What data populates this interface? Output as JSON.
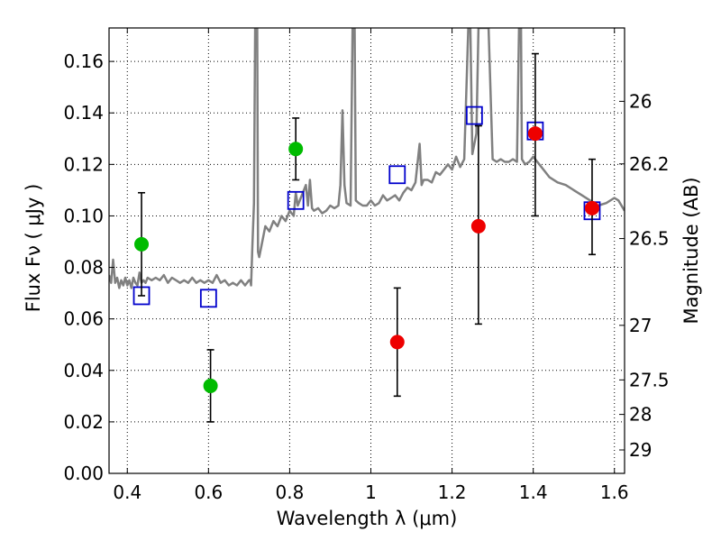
{
  "chart_data": {
    "type": "scatter",
    "xlabel": "Wavelength  λ (μm)",
    "ylabel": "Flux  Fν ( μJy )",
    "ylabel_right": "Magnitude (AB)",
    "xlim": [
      0.355,
      1.625
    ],
    "ylim": [
      0.0,
      0.173
    ],
    "grid": true,
    "x_ticks": [
      0.4,
      0.6,
      0.8,
      1.0,
      1.2,
      1.4,
      1.6
    ],
    "x_tick_labels": [
      "0.4",
      "0.6",
      "0.8",
      "1",
      "1.2",
      "1.4",
      "1.6"
    ],
    "y_ticks": [
      0.0,
      0.02,
      0.04,
      0.06,
      0.08,
      0.1,
      0.12,
      0.14,
      0.16
    ],
    "y_tick_labels": [
      "0.00",
      "0.02",
      "0.04",
      "0.06",
      "0.08",
      "0.10",
      "0.12",
      "0.14",
      "0.16"
    ],
    "y2_ticks": [
      {
        "label": "26",
        "flux": 0.1445
      },
      {
        "label": "26.2",
        "flux": 0.1202
      },
      {
        "label": "26.5",
        "flux": 0.0912
      },
      {
        "label": "27",
        "flux": 0.0575
      },
      {
        "label": "27.5",
        "flux": 0.0363
      },
      {
        "label": "28",
        "flux": 0.0229
      },
      {
        "label": "29",
        "flux": 0.0091
      }
    ],
    "series": [
      {
        "color": "#808080",
        "line": [
          [
            0.355,
            0.077
          ],
          [
            0.36,
            0.074
          ],
          [
            0.365,
            0.083
          ],
          [
            0.37,
            0.074
          ],
          [
            0.375,
            0.076
          ],
          [
            0.38,
            0.072
          ],
          [
            0.385,
            0.075
          ],
          [
            0.39,
            0.073
          ],
          [
            0.395,
            0.076
          ],
          [
            0.4,
            0.073
          ],
          [
            0.405,
            0.075
          ],
          [
            0.41,
            0.072
          ],
          [
            0.415,
            0.076
          ],
          [
            0.42,
            0.074
          ],
          [
            0.425,
            0.073
          ],
          [
            0.43,
            0.078
          ],
          [
            0.435,
            0.074
          ],
          [
            0.44,
            0.075
          ],
          [
            0.445,
            0.074
          ],
          [
            0.45,
            0.076
          ],
          [
            0.46,
            0.075
          ],
          [
            0.47,
            0.076
          ],
          [
            0.48,
            0.075
          ],
          [
            0.49,
            0.077
          ],
          [
            0.5,
            0.074
          ],
          [
            0.51,
            0.076
          ],
          [
            0.52,
            0.075
          ],
          [
            0.53,
            0.074
          ],
          [
            0.54,
            0.075
          ],
          [
            0.55,
            0.074
          ],
          [
            0.56,
            0.076
          ],
          [
            0.57,
            0.074
          ],
          [
            0.58,
            0.075
          ],
          [
            0.59,
            0.074
          ],
          [
            0.6,
            0.075
          ],
          [
            0.61,
            0.074
          ],
          [
            0.62,
            0.077
          ],
          [
            0.63,
            0.074
          ],
          [
            0.64,
            0.075
          ],
          [
            0.65,
            0.073
          ],
          [
            0.66,
            0.074
          ],
          [
            0.67,
            0.073
          ],
          [
            0.68,
            0.075
          ],
          [
            0.69,
            0.073
          ],
          [
            0.7,
            0.075
          ],
          [
            0.703,
            0.075
          ],
          [
            0.705,
            0.073
          ],
          [
            0.708,
            0.088
          ],
          [
            0.712,
            0.105
          ],
          [
            0.715,
            0.173
          ],
          [
            0.72,
            0.173
          ],
          [
            0.722,
            0.086
          ],
          [
            0.725,
            0.084
          ],
          [
            0.73,
            0.088
          ],
          [
            0.74,
            0.096
          ],
          [
            0.75,
            0.094
          ],
          [
            0.76,
            0.098
          ],
          [
            0.77,
            0.096
          ],
          [
            0.78,
            0.1
          ],
          [
            0.79,
            0.098
          ],
          [
            0.8,
            0.102
          ],
          [
            0.81,
            0.1
          ],
          [
            0.815,
            0.109
          ],
          [
            0.82,
            0.104
          ],
          [
            0.83,
            0.108
          ],
          [
            0.84,
            0.112
          ],
          [
            0.845,
            0.104
          ],
          [
            0.85,
            0.114
          ],
          [
            0.855,
            0.103
          ],
          [
            0.86,
            0.102
          ],
          [
            0.87,
            0.103
          ],
          [
            0.88,
            0.101
          ],
          [
            0.89,
            0.102
          ],
          [
            0.9,
            0.104
          ],
          [
            0.91,
            0.103
          ],
          [
            0.92,
            0.104
          ],
          [
            0.925,
            0.112
          ],
          [
            0.93,
            0.141
          ],
          [
            0.935,
            0.112
          ],
          [
            0.94,
            0.105
          ],
          [
            0.95,
            0.104
          ],
          [
            0.955,
            0.173
          ],
          [
            0.96,
            0.173
          ],
          [
            0.963,
            0.106
          ],
          [
            0.97,
            0.105
          ],
          [
            0.98,
            0.104
          ],
          [
            0.99,
            0.104
          ],
          [
            1.0,
            0.106
          ],
          [
            1.01,
            0.104
          ],
          [
            1.02,
            0.105
          ],
          [
            1.03,
            0.108
          ],
          [
            1.04,
            0.106
          ],
          [
            1.05,
            0.107
          ],
          [
            1.06,
            0.108
          ],
          [
            1.07,
            0.106
          ],
          [
            1.08,
            0.109
          ],
          [
            1.09,
            0.111
          ],
          [
            1.1,
            0.11
          ],
          [
            1.11,
            0.113
          ],
          [
            1.12,
            0.128
          ],
          [
            1.125,
            0.112
          ],
          [
            1.13,
            0.114
          ],
          [
            1.14,
            0.114
          ],
          [
            1.15,
            0.113
          ],
          [
            1.16,
            0.117
          ],
          [
            1.17,
            0.116
          ],
          [
            1.18,
            0.118
          ],
          [
            1.19,
            0.12
          ],
          [
            1.2,
            0.118
          ],
          [
            1.21,
            0.123
          ],
          [
            1.22,
            0.119
          ],
          [
            1.23,
            0.122
          ],
          [
            1.24,
            0.173
          ],
          [
            1.245,
            0.173
          ],
          [
            1.25,
            0.124
          ],
          [
            1.26,
            0.132
          ],
          [
            1.265,
            0.173
          ],
          [
            1.275,
            0.173
          ],
          [
            1.28,
            0.173
          ],
          [
            1.29,
            0.173
          ],
          [
            1.3,
            0.122
          ],
          [
            1.31,
            0.121
          ],
          [
            1.32,
            0.122
          ],
          [
            1.33,
            0.121
          ],
          [
            1.34,
            0.121
          ],
          [
            1.35,
            0.122
          ],
          [
            1.36,
            0.121
          ],
          [
            1.365,
            0.173
          ],
          [
            1.37,
            0.173
          ],
          [
            1.372,
            0.122
          ],
          [
            1.38,
            0.12
          ],
          [
            1.39,
            0.121
          ],
          [
            1.4,
            0.123
          ],
          [
            1.41,
            0.121
          ],
          [
            1.42,
            0.119
          ],
          [
            1.43,
            0.117
          ],
          [
            1.44,
            0.115
          ],
          [
            1.46,
            0.113
          ],
          [
            1.48,
            0.112
          ],
          [
            1.5,
            0.11
          ],
          [
            1.52,
            0.108
          ],
          [
            1.54,
            0.106
          ],
          [
            1.56,
            0.104
          ],
          [
            1.58,
            0.105
          ],
          [
            1.6,
            0.107
          ],
          [
            1.61,
            0.106
          ],
          [
            1.625,
            0.102
          ]
        ]
      },
      {
        "marker": "square",
        "color": "#0000cc",
        "points": [
          [
            0.435,
            0.069
          ],
          [
            0.6,
            0.068
          ],
          [
            0.815,
            0.106
          ],
          [
            1.065,
            0.116
          ],
          [
            1.255,
            0.139
          ],
          [
            1.405,
            0.133
          ],
          [
            1.545,
            0.102
          ]
        ]
      },
      {
        "marker": "circle",
        "color": "#00bb00",
        "points": [
          {
            "x": 0.435,
            "y": 0.089,
            "lo": 0.069,
            "hi": 0.109
          },
          {
            "x": 0.605,
            "y": 0.034,
            "lo": 0.02,
            "hi": 0.048
          },
          {
            "x": 0.815,
            "y": 0.126,
            "lo": 0.114,
            "hi": 0.138
          }
        ]
      },
      {
        "marker": "circle",
        "color": "#ee0000",
        "points": [
          {
            "x": 1.065,
            "y": 0.051,
            "lo": 0.03,
            "hi": 0.072
          },
          {
            "x": 1.265,
            "y": 0.096,
            "lo": 0.058,
            "hi": 0.135
          },
          {
            "x": 1.405,
            "y": 0.132,
            "lo": 0.1,
            "hi": 0.163
          },
          {
            "x": 1.545,
            "y": 0.103,
            "lo": 0.085,
            "hi": 0.122
          }
        ]
      }
    ]
  }
}
